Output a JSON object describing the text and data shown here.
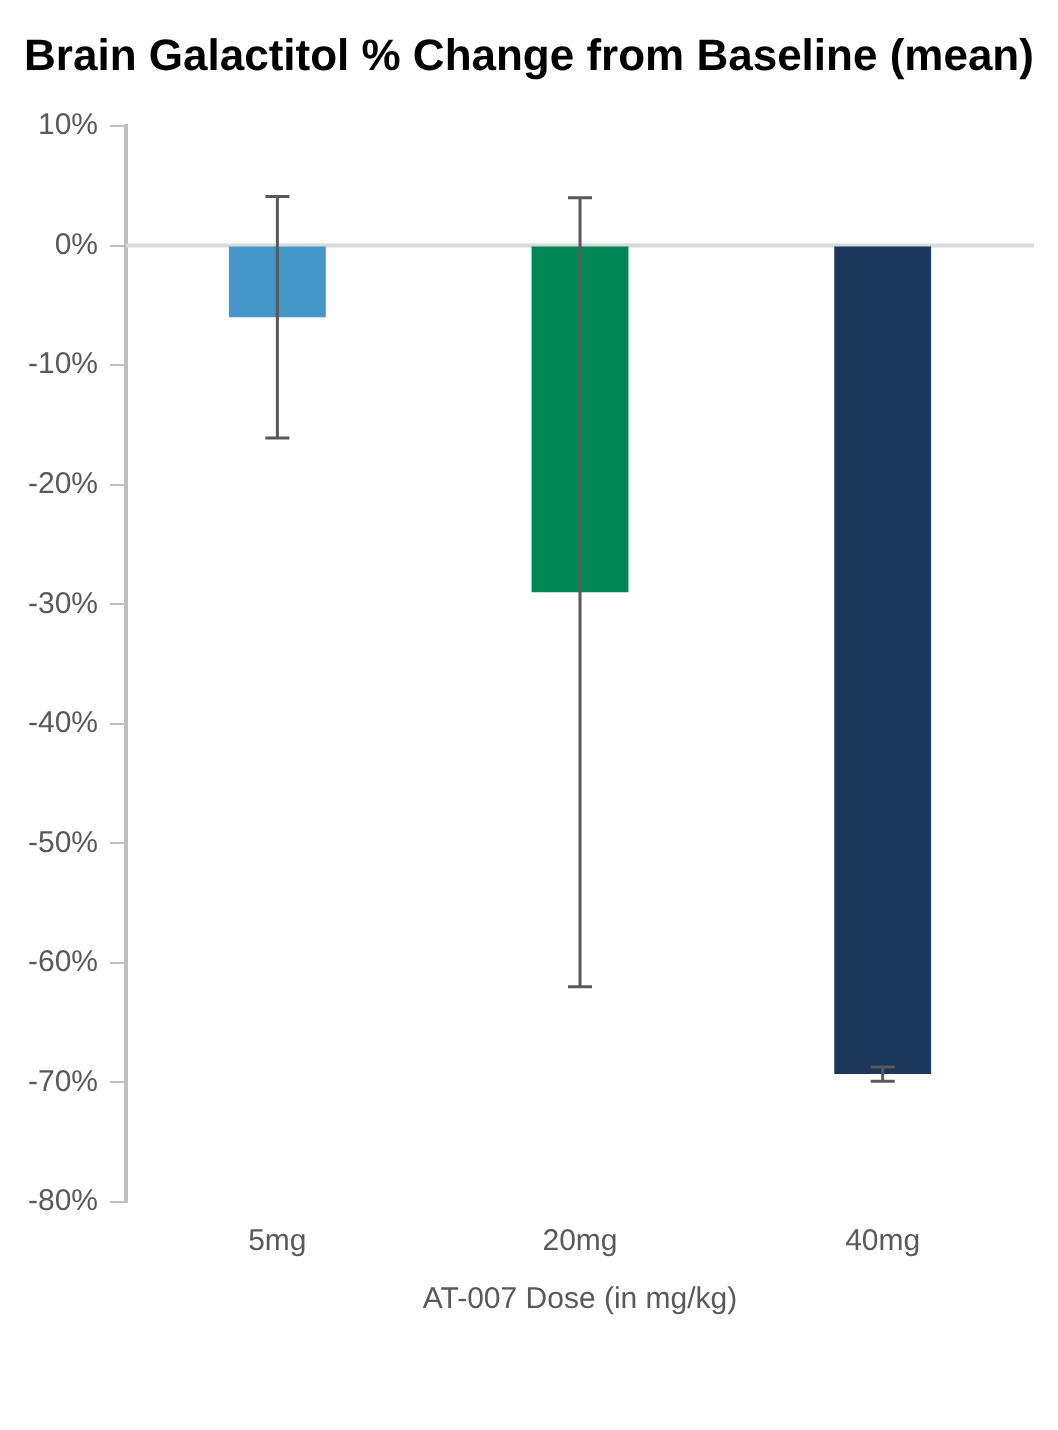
{
  "chart_data": {
    "type": "bar",
    "title": "Brain Galactitol % Change from Baseline (mean)",
    "xlabel": "AT-007 Dose (in mg/kg)",
    "categories": [
      "5mg",
      "20mg",
      "40mg"
    ],
    "values": [
      -6.0,
      -29.0,
      -69.3
    ],
    "colors": [
      "#4597c9",
      "#008655",
      "#1c365c"
    ],
    "errors": [
      10.1,
      33.0,
      0.6
    ],
    "ylim": [
      -80,
      10
    ],
    "yticks": [
      {
        "value": 10,
        "label": "10%"
      },
      {
        "value": 0,
        "label": "0%"
      },
      {
        "value": -10,
        "label": "-10%"
      },
      {
        "value": -20,
        "label": "-20%"
      },
      {
        "value": -30,
        "label": "-30%"
      },
      {
        "value": -40,
        "label": "-40%"
      },
      {
        "value": -50,
        "label": "-50%"
      },
      {
        "value": -60,
        "label": "-60%"
      },
      {
        "value": -70,
        "label": "-70%"
      },
      {
        "value": -80,
        "label": "-80%"
      }
    ],
    "grid": false,
    "legend": false
  }
}
